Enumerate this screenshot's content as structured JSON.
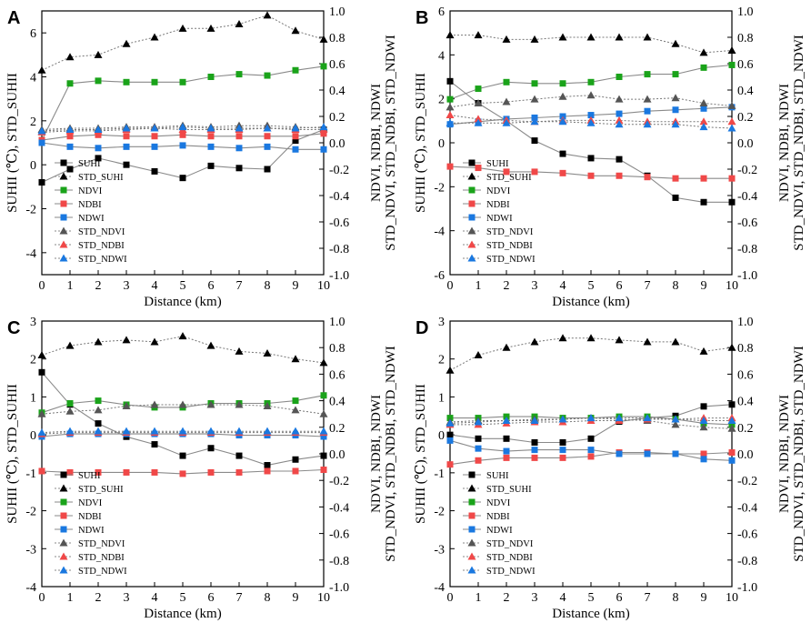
{
  "chart_data": [
    {
      "type": "line",
      "panel_label": "A",
      "xlabel": "Distance (km)",
      "ylabel_left": "SUHII (℃), STD_SUHII",
      "ylabel_right": "NDVI, NDBI, NDWI",
      "ylabel_right2": "STD_NDVI, STD_NDBI, STD_NDWI",
      "x": [
        0,
        1,
        2,
        3,
        4,
        5,
        6,
        7,
        8,
        9,
        10
      ],
      "xticks": [
        "0",
        "1",
        "2",
        "3",
        "4",
        "5",
        "6",
        "7",
        "8",
        "9",
        "10"
      ],
      "ylim_left": [
        -5,
        7
      ],
      "yticks_left": [
        "-4",
        "-2",
        "0",
        "2",
        "4",
        "6"
      ],
      "ylim_right": [
        -1.0,
        1.0
      ],
      "yticks_right": [
        "-1.0",
        "-0.8",
        "-0.6",
        "-0.4",
        "-0.2",
        "0.0",
        "0.2",
        "0.4",
        "0.6",
        "0.8",
        "1.0"
      ],
      "legend_position": "bottom-left",
      "series": [
        {
          "name": "SUHI",
          "axis": "left",
          "values": [
            -0.8,
            -0.2,
            0.3,
            0.0,
            -0.3,
            -0.6,
            -0.05,
            -0.15,
            -0.2,
            1.1,
            1.6
          ]
        },
        {
          "name": "STD_SUHI",
          "axis": "left",
          "values": [
            4.3,
            4.9,
            5.0,
            5.5,
            5.8,
            6.2,
            6.2,
            6.4,
            6.8,
            6.1,
            5.7
          ]
        },
        {
          "name": "NDVI",
          "axis": "right",
          "values": [
            0.02,
            0.45,
            0.47,
            0.46,
            0.46,
            0.46,
            0.5,
            0.52,
            0.51,
            0.55,
            0.58
          ]
        },
        {
          "name": "NDBI",
          "axis": "right",
          "values": [
            0.02,
            0.05,
            0.06,
            0.05,
            0.05,
            0.06,
            0.05,
            0.05,
            0.05,
            0.05,
            0.07
          ]
        },
        {
          "name": "NDWI",
          "axis": "right",
          "values": [
            0.0,
            -0.03,
            -0.04,
            -0.03,
            -0.03,
            -0.02,
            -0.03,
            -0.04,
            -0.03,
            -0.05,
            -0.05
          ]
        },
        {
          "name": "STD_NDVI",
          "axis": "right",
          "values": [
            0.1,
            0.11,
            0.11,
            0.12,
            0.12,
            0.13,
            0.12,
            0.13,
            0.13,
            0.12,
            0.11
          ]
        },
        {
          "name": "STD_NDBI",
          "axis": "right",
          "values": [
            0.08,
            0.09,
            0.09,
            0.1,
            0.11,
            0.1,
            0.1,
            0.1,
            0.11,
            0.1,
            0.1
          ]
        },
        {
          "name": "STD_NDWI",
          "axis": "right",
          "values": [
            0.09,
            0.1,
            0.1,
            0.11,
            0.11,
            0.12,
            0.11,
            0.11,
            0.11,
            0.11,
            0.12
          ]
        }
      ]
    },
    {
      "type": "line",
      "panel_label": "B",
      "xlabel": "Distance (km)",
      "ylabel_left": "SUHII (℃), STD_SUHII",
      "ylabel_right": "NDVI, NDBI, NDWI",
      "ylabel_right2": "STD_NDVI, STD_NDBI, STD_NDWI",
      "x": [
        0,
        1,
        2,
        3,
        4,
        5,
        6,
        7,
        8,
        9,
        10
      ],
      "xticks": [
        "0",
        "1",
        "2",
        "3",
        "4",
        "5",
        "6",
        "7",
        "8",
        "9",
        "10"
      ],
      "ylim_left": [
        -6,
        6
      ],
      "yticks_left": [
        "-6",
        "-4",
        "-2",
        "0",
        "2",
        "4",
        "6"
      ],
      "ylim_right": [
        -1.0,
        1.0
      ],
      "yticks_right": [
        "-1.0",
        "-0.8",
        "-0.6",
        "-0.4",
        "-0.2",
        "0.0",
        "0.2",
        "0.4",
        "0.6",
        "0.8",
        "1.0"
      ],
      "legend_position": "bottom-left",
      "series": [
        {
          "name": "SUHI",
          "axis": "left",
          "values": [
            2.8,
            1.8,
            1.0,
            0.1,
            -0.5,
            -0.7,
            -0.75,
            -1.5,
            -2.5,
            -2.7,
            -2.7
          ]
        },
        {
          "name": "STD_SUHI",
          "axis": "left",
          "values": [
            4.9,
            4.9,
            4.7,
            4.7,
            4.8,
            4.8,
            4.8,
            4.8,
            4.5,
            4.1,
            4.2
          ]
        },
        {
          "name": "NDVI",
          "axis": "right",
          "values": [
            0.33,
            0.41,
            0.46,
            0.45,
            0.45,
            0.46,
            0.5,
            0.52,
            0.52,
            0.57,
            0.59
          ]
        },
        {
          "name": "NDBI",
          "axis": "right",
          "values": [
            -0.18,
            -0.19,
            -0.22,
            -0.22,
            -0.23,
            -0.25,
            -0.25,
            -0.26,
            -0.27,
            -0.27,
            -0.27
          ]
        },
        {
          "name": "NDWI",
          "axis": "right",
          "values": [
            0.14,
            0.16,
            0.18,
            0.19,
            0.2,
            0.21,
            0.22,
            0.24,
            0.25,
            0.26,
            0.27
          ]
        },
        {
          "name": "STD_NDVI",
          "axis": "right",
          "values": [
            0.27,
            0.3,
            0.31,
            0.33,
            0.35,
            0.36,
            0.33,
            0.33,
            0.34,
            0.3,
            0.28
          ]
        },
        {
          "name": "STD_NDBI",
          "axis": "right",
          "values": [
            0.21,
            0.18,
            0.17,
            0.16,
            0.17,
            0.17,
            0.17,
            0.16,
            0.16,
            0.16,
            0.16
          ]
        },
        {
          "name": "STD_NDWI",
          "axis": "right",
          "values": [
            0.15,
            0.15,
            0.15,
            0.16,
            0.16,
            0.15,
            0.14,
            0.14,
            0.14,
            0.12,
            0.11
          ]
        }
      ]
    },
    {
      "type": "line",
      "panel_label": "C",
      "xlabel": "Distance (km)",
      "ylabel_left": "SUHII (℃), STD_SUHII",
      "ylabel_right": "NDVI, NDBI, NDWI",
      "ylabel_right2": "STD_NDVI, STD_NDBI, STD_NDWI",
      "x": [
        0,
        1,
        2,
        3,
        4,
        5,
        6,
        7,
        8,
        9,
        10
      ],
      "xticks": [
        "0",
        "1",
        "2",
        "3",
        "4",
        "5",
        "6",
        "7",
        "8",
        "9",
        "10"
      ],
      "ylim_left": [
        -4,
        3
      ],
      "yticks_left": [
        "-4",
        "-3",
        "-2",
        "-1",
        "0",
        "1",
        "2",
        "3"
      ],
      "ylim_right": [
        -1.0,
        1.0
      ],
      "yticks_right": [
        "-1.0",
        "-0.8",
        "-0.6",
        "-0.4",
        "-0.2",
        "0.0",
        "0.2",
        "0.4",
        "0.6",
        "0.8",
        "1.0"
      ],
      "legend_position": "bottom-left",
      "series": [
        {
          "name": "SUHI",
          "axis": "left",
          "values": [
            1.65,
            0.8,
            0.3,
            -0.05,
            -0.25,
            -0.55,
            -0.35,
            -0.55,
            -0.8,
            -0.65,
            -0.55
          ]
        },
        {
          "name": "STD_SUHI",
          "axis": "left",
          "values": [
            2.1,
            2.35,
            2.45,
            2.5,
            2.45,
            2.6,
            2.35,
            2.2,
            2.15,
            2.0,
            1.9
          ]
        },
        {
          "name": "NDVI",
          "axis": "right",
          "values": [
            0.31,
            0.38,
            0.4,
            0.37,
            0.35,
            0.35,
            0.38,
            0.38,
            0.38,
            0.4,
            0.44
          ]
        },
        {
          "name": "NDBI",
          "axis": "right",
          "values": [
            -0.13,
            -0.14,
            -0.14,
            -0.14,
            -0.14,
            -0.15,
            -0.14,
            -0.14,
            -0.13,
            -0.13,
            -0.12
          ]
        },
        {
          "name": "NDWI",
          "axis": "right",
          "values": [
            0.13,
            0.15,
            0.15,
            0.15,
            0.15,
            0.15,
            0.15,
            0.14,
            0.14,
            0.14,
            0.13
          ]
        },
        {
          "name": "STD_NDVI",
          "axis": "right",
          "values": [
            0.3,
            0.32,
            0.33,
            0.36,
            0.37,
            0.37,
            0.37,
            0.37,
            0.36,
            0.33,
            0.3
          ]
        },
        {
          "name": "STD_NDBI",
          "axis": "right",
          "values": [
            0.15,
            0.16,
            0.16,
            0.16,
            0.16,
            0.16,
            0.16,
            0.16,
            0.16,
            0.16,
            0.16
          ]
        },
        {
          "name": "STD_NDWI",
          "axis": "right",
          "values": [
            0.16,
            0.17,
            0.17,
            0.17,
            0.17,
            0.17,
            0.17,
            0.17,
            0.17,
            0.17,
            0.17
          ]
        }
      ]
    },
    {
      "type": "line",
      "panel_label": "D",
      "xlabel": "Distance (km)",
      "ylabel_left": "SUHII (℃), STD_SUHII",
      "ylabel_right": "NDVI, NDBI, NDWI",
      "ylabel_right2": "STD_NDVI, STD_NDBI, STD_NDWI",
      "x": [
        0,
        1,
        2,
        3,
        4,
        5,
        6,
        7,
        8,
        9,
        10
      ],
      "xticks": [
        "0",
        "1",
        "2",
        "3",
        "4",
        "5",
        "6",
        "7",
        "8",
        "9",
        "10"
      ],
      "ylim_left": [
        -4,
        3
      ],
      "yticks_left": [
        "-4",
        "-3",
        "-2",
        "-1",
        "0",
        "1",
        "2",
        "3"
      ],
      "ylim_right": [
        -1.0,
        1.0
      ],
      "yticks_right": [
        "-1.0",
        "-0.8",
        "-0.6",
        "-0.4",
        "-0.2",
        "0.0",
        "0.2",
        "0.4",
        "0.6",
        "0.8",
        "1.0"
      ],
      "legend_position": "bottom-left",
      "series": [
        {
          "name": "SUHI",
          "axis": "left",
          "values": [
            0.0,
            -0.1,
            -0.1,
            -0.2,
            -0.2,
            -0.1,
            0.35,
            0.45,
            0.5,
            0.75,
            0.8
          ]
        },
        {
          "name": "STD_SUHI",
          "axis": "left",
          "values": [
            1.7,
            2.1,
            2.3,
            2.45,
            2.55,
            2.55,
            2.5,
            2.45,
            2.45,
            2.2,
            2.3
          ]
        },
        {
          "name": "NDVI",
          "axis": "right",
          "values": [
            0.27,
            0.27,
            0.28,
            0.28,
            0.27,
            0.27,
            0.28,
            0.28,
            0.26,
            0.23,
            0.22
          ]
        },
        {
          "name": "NDBI",
          "axis": "right",
          "values": [
            -0.08,
            -0.05,
            -0.03,
            -0.03,
            -0.03,
            -0.02,
            0.01,
            0.01,
            0.0,
            0.0,
            0.01
          ]
        },
        {
          "name": "NDWI",
          "axis": "right",
          "values": [
            0.1,
            0.04,
            0.02,
            0.03,
            0.03,
            0.03,
            0.0,
            0.0,
            0.0,
            -0.04,
            -0.05
          ]
        },
        {
          "name": "STD_NDVI",
          "axis": "right",
          "values": [
            0.24,
            0.25,
            0.25,
            0.26,
            0.26,
            0.27,
            0.26,
            0.25,
            0.22,
            0.2,
            0.19
          ]
        },
        {
          "name": "STD_NDBI",
          "axis": "right",
          "values": [
            0.22,
            0.22,
            0.23,
            0.24,
            0.24,
            0.25,
            0.25,
            0.26,
            0.26,
            0.27,
            0.27
          ]
        },
        {
          "name": "STD_NDWI",
          "axis": "right",
          "values": [
            0.23,
            0.24,
            0.25,
            0.25,
            0.26,
            0.27,
            0.27,
            0.27,
            0.26,
            0.25,
            0.25
          ]
        }
      ]
    }
  ],
  "series_styles": [
    {
      "name": "SUHI",
      "color": "#000000",
      "marker": "square",
      "line": "solid"
    },
    {
      "name": "STD_SUHI",
      "color": "#000000",
      "marker": "triangle",
      "line": "dotted"
    },
    {
      "name": "NDVI",
      "color": "#1aa31a",
      "marker": "square",
      "line": "solid"
    },
    {
      "name": "NDBI",
      "color": "#f04848",
      "marker": "square",
      "line": "solid"
    },
    {
      "name": "NDWI",
      "color": "#1a78e0",
      "marker": "square",
      "line": "solid"
    },
    {
      "name": "STD_NDVI",
      "color": "#555555",
      "marker": "triangle",
      "line": "dotted"
    },
    {
      "name": "STD_NDBI",
      "color": "#f04848",
      "marker": "triangle",
      "line": "dotted"
    },
    {
      "name": "STD_NDWI",
      "color": "#1a78e0",
      "marker": "triangle",
      "line": "dotted"
    }
  ]
}
